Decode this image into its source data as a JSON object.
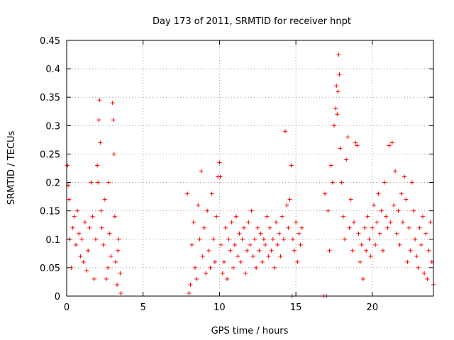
{
  "chart_data": {
    "type": "scatter",
    "title": "Day 173 of 2011, SRMTID for receiver hnpt",
    "xlabel": "GPS time / hours",
    "ylabel": "SRMTID / TECUs",
    "xlim": [
      0,
      24
    ],
    "ylim": [
      0,
      0.45
    ],
    "xticks": [
      0,
      5,
      10,
      15,
      20
    ],
    "yticks": [
      0,
      0.05,
      0.1,
      0.15,
      0.2,
      0.25,
      0.3,
      0.35,
      0.4,
      0.45
    ],
    "marker": "+",
    "color": "#ff0000",
    "grid": true,
    "series": [
      {
        "name": "SRMTID",
        "points": [
          [
            0.05,
            0.23
          ],
          [
            0.1,
            0.195
          ],
          [
            0.15,
            0.17
          ],
          [
            0.2,
            0.1
          ],
          [
            0.3,
            0.05
          ],
          [
            0.4,
            0.12
          ],
          [
            0.5,
            0.14
          ],
          [
            0.6,
            0.09
          ],
          [
            0.7,
            0.15
          ],
          [
            0.8,
            0.11
          ],
          [
            0.9,
            0.07
          ],
          [
            1.0,
            0.1
          ],
          [
            1.1,
            0.06
          ],
          [
            1.2,
            0.13
          ],
          [
            1.3,
            0.045
          ],
          [
            1.4,
            0.08
          ],
          [
            1.5,
            0.12
          ],
          [
            1.6,
            0.2
          ],
          [
            1.7,
            0.14
          ],
          [
            1.8,
            0.03
          ],
          [
            1.9,
            0.1
          ],
          [
            2.0,
            0.23
          ],
          [
            2.05,
            0.2
          ],
          [
            2.1,
            0.31
          ],
          [
            2.15,
            0.345
          ],
          [
            2.2,
            0.27
          ],
          [
            2.25,
            0.15
          ],
          [
            2.3,
            0.12
          ],
          [
            2.4,
            0.09
          ],
          [
            2.5,
            0.17
          ],
          [
            2.6,
            0.03
          ],
          [
            2.7,
            0.05
          ],
          [
            2.75,
            0.2
          ],
          [
            2.8,
            0.11
          ],
          [
            2.9,
            0.07
          ],
          [
            3.0,
            0.34
          ],
          [
            3.05,
            0.31
          ],
          [
            3.1,
            0.25
          ],
          [
            3.15,
            0.14
          ],
          [
            3.2,
            0.06
          ],
          [
            3.3,
            0.02
          ],
          [
            3.35,
            0.08
          ],
          [
            3.4,
            0.1
          ],
          [
            3.5,
            0.04
          ],
          [
            3.55,
            0.005
          ],
          [
            7.9,
            0.18
          ],
          [
            8.0,
            0.005
          ],
          [
            8.1,
            0.02
          ],
          [
            8.2,
            0.09
          ],
          [
            8.3,
            0.13
          ],
          [
            8.4,
            0.05
          ],
          [
            8.5,
            0.03
          ],
          [
            8.6,
            0.16
          ],
          [
            8.7,
            0.1
          ],
          [
            8.8,
            0.22
          ],
          [
            8.9,
            0.07
          ],
          [
            9.0,
            0.12
          ],
          [
            9.1,
            0.04
          ],
          [
            9.2,
            0.15
          ],
          [
            9.3,
            0.08
          ],
          [
            9.4,
            0.05
          ],
          [
            9.5,
            0.18
          ],
          [
            9.6,
            0.1
          ],
          [
            9.7,
            0.06
          ],
          [
            9.8,
            0.14
          ],
          [
            9.9,
            0.21
          ],
          [
            10.0,
            0.235
          ],
          [
            10.05,
            0.21
          ],
          [
            10.1,
            0.09
          ],
          [
            10.2,
            0.04
          ],
          [
            10.3,
            0.06
          ],
          [
            10.4,
            0.12
          ],
          [
            10.5,
            0.03
          ],
          [
            10.6,
            0.1
          ],
          [
            10.7,
            0.08
          ],
          [
            10.8,
            0.13
          ],
          [
            10.9,
            0.05
          ],
          [
            11.0,
            0.09
          ],
          [
            11.1,
            0.14
          ],
          [
            11.2,
            0.07
          ],
          [
            11.3,
            0.11
          ],
          [
            11.4,
            0.06
          ],
          [
            11.5,
            0.1
          ],
          [
            11.6,
            0.12
          ],
          [
            11.7,
            0.04
          ],
          [
            11.8,
            0.08
          ],
          [
            11.9,
            0.13
          ],
          [
            12.0,
            0.09
          ],
          [
            12.1,
            0.15
          ],
          [
            12.2,
            0.07
          ],
          [
            12.3,
            0.1
          ],
          [
            12.4,
            0.05
          ],
          [
            12.5,
            0.12
          ],
          [
            12.6,
            0.08
          ],
          [
            12.7,
            0.11
          ],
          [
            12.8,
            0.06
          ],
          [
            12.9,
            0.1
          ],
          [
            13.0,
            0.09
          ],
          [
            13.1,
            0.14
          ],
          [
            13.2,
            0.07
          ],
          [
            13.3,
            0.12
          ],
          [
            13.4,
            0.08
          ],
          [
            13.5,
            0.1
          ],
          [
            13.6,
            0.05
          ],
          [
            13.7,
            0.13
          ],
          [
            13.8,
            0.09
          ],
          [
            13.9,
            0.11
          ],
          [
            14.0,
            0.07
          ],
          [
            14.1,
            0.14
          ],
          [
            14.2,
            0.1
          ],
          [
            14.3,
            0.29
          ],
          [
            14.4,
            0.16
          ],
          [
            14.5,
            0.12
          ],
          [
            14.6,
            0.17
          ],
          [
            14.7,
            0.23
          ],
          [
            14.75,
            0.0
          ],
          [
            14.8,
            0.1
          ],
          [
            14.9,
            0.08
          ],
          [
            15.0,
            0.13
          ],
          [
            15.1,
            0.06
          ],
          [
            15.2,
            0.11
          ],
          [
            15.3,
            0.09
          ],
          [
            15.4,
            0.12
          ],
          [
            16.8,
            0.0
          ],
          [
            16.9,
            0.18
          ],
          [
            17.0,
            0.0
          ],
          [
            17.1,
            0.15
          ],
          [
            17.2,
            0.08
          ],
          [
            17.3,
            0.23
          ],
          [
            17.4,
            0.2
          ],
          [
            17.5,
            0.3
          ],
          [
            17.6,
            0.33
          ],
          [
            17.65,
            0.37
          ],
          [
            17.7,
            0.32
          ],
          [
            17.75,
            0.36
          ],
          [
            17.8,
            0.425
          ],
          [
            17.85,
            0.39
          ],
          [
            17.9,
            0.26
          ],
          [
            18.0,
            0.2
          ],
          [
            18.1,
            0.14
          ],
          [
            18.2,
            0.1
          ],
          [
            18.3,
            0.24
          ],
          [
            18.4,
            0.28
          ],
          [
            18.5,
            0.12
          ],
          [
            18.6,
            0.17
          ],
          [
            18.7,
            0.08
          ],
          [
            18.8,
            0.13
          ],
          [
            18.9,
            0.27
          ],
          [
            19.0,
            0.265
          ],
          [
            19.1,
            0.11
          ],
          [
            19.2,
            0.06
          ],
          [
            19.3,
            0.09
          ],
          [
            19.4,
            0.03
          ],
          [
            19.5,
            0.12
          ],
          [
            19.6,
            0.08
          ],
          [
            19.7,
            0.14
          ],
          [
            19.8,
            0.1
          ],
          [
            19.9,
            0.07
          ],
          [
            20.0,
            0.12
          ],
          [
            20.1,
            0.16
          ],
          [
            20.2,
            0.09
          ],
          [
            20.3,
            0.13
          ],
          [
            20.4,
            0.18
          ],
          [
            20.5,
            0.11
          ],
          [
            20.6,
            0.15
          ],
          [
            20.7,
            0.08
          ],
          [
            20.8,
            0.2
          ],
          [
            20.9,
            0.14
          ],
          [
            21.0,
            0.12
          ],
          [
            21.1,
            0.265
          ],
          [
            21.2,
            0.13
          ],
          [
            21.3,
            0.27
          ],
          [
            21.4,
            0.16
          ],
          [
            21.5,
            0.22
          ],
          [
            21.6,
            0.11
          ],
          [
            21.7,
            0.15
          ],
          [
            21.8,
            0.09
          ],
          [
            21.9,
            0.18
          ],
          [
            22.0,
            0.13
          ],
          [
            22.1,
            0.21
          ],
          [
            22.2,
            0.17
          ],
          [
            22.3,
            0.06
          ],
          [
            22.4,
            0.12
          ],
          [
            22.5,
            0.08
          ],
          [
            22.6,
            0.2
          ],
          [
            22.7,
            0.15
          ],
          [
            22.8,
            0.1
          ],
          [
            22.9,
            0.07
          ],
          [
            23.0,
            0.05
          ],
          [
            23.1,
            0.12
          ],
          [
            23.2,
            0.09
          ],
          [
            23.3,
            0.14
          ],
          [
            23.4,
            0.04
          ],
          [
            23.5,
            0.11
          ],
          [
            23.6,
            0.03
          ],
          [
            23.7,
            0.08
          ],
          [
            23.8,
            0.13
          ],
          [
            23.9,
            0.06
          ],
          [
            24.0,
            0.02
          ]
        ]
      }
    ]
  }
}
